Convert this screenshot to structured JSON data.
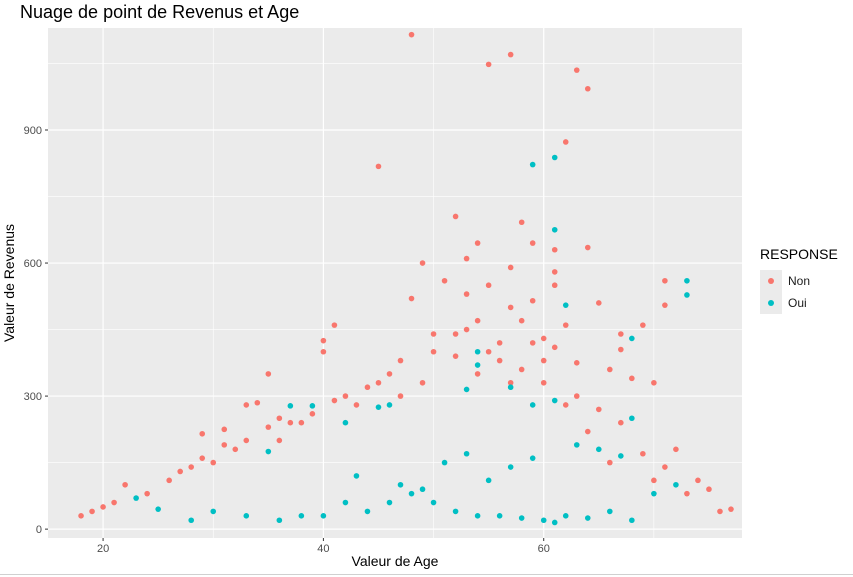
{
  "chart_data": {
    "type": "scatter",
    "title": "Nuage de point de Revenus et Age",
    "xlabel": "Valeur de Age",
    "ylabel": "Valeur de Revenus",
    "xlim": [
      15,
      78
    ],
    "ylim": [
      -20,
      1130
    ],
    "x_ticks": [
      20,
      40,
      60
    ],
    "y_ticks": [
      0,
      300,
      600,
      900
    ],
    "grid": true,
    "legend": {
      "title": "RESPONSE",
      "position": "right"
    },
    "series": [
      {
        "name": "Non",
        "color": "#F8766D",
        "points": [
          [
            48,
            1115
          ],
          [
            57,
            1070
          ],
          [
            55,
            1048
          ],
          [
            63,
            1035
          ],
          [
            64,
            993
          ],
          [
            45,
            818
          ],
          [
            62,
            873
          ],
          [
            52,
            705
          ],
          [
            58,
            692
          ],
          [
            54,
            645
          ],
          [
            59,
            645
          ],
          [
            64,
            635
          ],
          [
            61,
            630
          ],
          [
            49,
            600
          ],
          [
            53,
            610
          ],
          [
            57,
            590
          ],
          [
            61,
            580
          ],
          [
            51,
            560
          ],
          [
            55,
            550
          ],
          [
            61,
            550
          ],
          [
            53,
            530
          ],
          [
            57,
            500
          ],
          [
            59,
            515
          ],
          [
            71,
            560
          ],
          [
            71,
            505
          ],
          [
            65,
            510
          ],
          [
            48,
            520
          ],
          [
            41,
            460
          ],
          [
            40,
            425
          ],
          [
            67,
            440
          ],
          [
            40,
            400
          ],
          [
            67,
            405
          ],
          [
            69,
            460
          ],
          [
            70,
            330
          ],
          [
            35,
            350
          ],
          [
            49,
            330
          ],
          [
            34,
            285
          ],
          [
            33,
            280
          ],
          [
            29,
            215
          ],
          [
            31,
            225
          ],
          [
            36,
            250
          ],
          [
            47,
            300
          ],
          [
            58,
            470
          ],
          [
            60,
            430
          ],
          [
            62,
            460
          ],
          [
            52,
            440
          ],
          [
            54,
            470
          ],
          [
            47,
            380
          ],
          [
            55,
            400
          ],
          [
            60,
            380
          ],
          [
            63,
            375
          ],
          [
            66,
            360
          ],
          [
            68,
            340
          ],
          [
            56,
            420
          ],
          [
            50,
            440
          ],
          [
            53,
            450
          ],
          [
            69,
            170
          ],
          [
            72,
            180
          ],
          [
            71,
            140
          ],
          [
            74,
            110
          ],
          [
            75,
            90
          ],
          [
            76,
            40
          ],
          [
            77,
            45
          ],
          [
            73,
            80
          ],
          [
            70,
            110
          ],
          [
            66,
            150
          ],
          [
            64,
            220
          ],
          [
            62,
            280
          ],
          [
            60,
            330
          ],
          [
            58,
            360
          ],
          [
            56,
            380
          ],
          [
            54,
            350
          ],
          [
            52,
            390
          ],
          [
            50,
            400
          ],
          [
            46,
            350
          ],
          [
            44,
            320
          ],
          [
            42,
            300
          ],
          [
            38,
            240
          ],
          [
            36,
            200
          ],
          [
            32,
            180
          ],
          [
            30,
            150
          ],
          [
            28,
            140
          ],
          [
            26,
            110
          ],
          [
            24,
            80
          ],
          [
            22,
            100
          ],
          [
            21,
            60
          ],
          [
            20,
            50
          ],
          [
            19,
            40
          ],
          [
            18,
            30
          ],
          [
            43,
            280
          ],
          [
            45,
            330
          ],
          [
            65,
            270
          ],
          [
            67,
            240
          ],
          [
            59,
            420
          ],
          [
            57,
            330
          ],
          [
            61,
            410
          ],
          [
            63,
            300
          ],
          [
            39,
            260
          ],
          [
            41,
            290
          ],
          [
            37,
            240
          ],
          [
            35,
            230
          ],
          [
            33,
            200
          ],
          [
            31,
            190
          ],
          [
            29,
            160
          ],
          [
            27,
            130
          ]
        ]
      },
      {
        "name": "Oui",
        "color": "#00BFC4",
        "points": [
          [
            59,
            822
          ],
          [
            61,
            838
          ],
          [
            61,
            675
          ],
          [
            62,
            505
          ],
          [
            73,
            560
          ],
          [
            73,
            528
          ],
          [
            54,
            370
          ],
          [
            54,
            400
          ],
          [
            37,
            278
          ],
          [
            39,
            278
          ],
          [
            42,
            240
          ],
          [
            45,
            275
          ],
          [
            46,
            280
          ],
          [
            35,
            175
          ],
          [
            57,
            320
          ],
          [
            59,
            280
          ],
          [
            61,
            290
          ],
          [
            65,
            180
          ],
          [
            68,
            250
          ],
          [
            68,
            430
          ],
          [
            53,
            315
          ],
          [
            23,
            70
          ],
          [
            25,
            45
          ],
          [
            30,
            40
          ],
          [
            40,
            30
          ],
          [
            44,
            40
          ],
          [
            46,
            60
          ],
          [
            48,
            80
          ],
          [
            50,
            60
          ],
          [
            52,
            40
          ],
          [
            54,
            30
          ],
          [
            56,
            30
          ],
          [
            58,
            25
          ],
          [
            60,
            20
          ],
          [
            61,
            15
          ],
          [
            62,
            30
          ],
          [
            64,
            25
          ],
          [
            66,
            40
          ],
          [
            68,
            20
          ],
          [
            70,
            80
          ],
          [
            72,
            100
          ],
          [
            36,
            20
          ],
          [
            38,
            30
          ],
          [
            42,
            60
          ],
          [
            47,
            100
          ],
          [
            55,
            110
          ],
          [
            57,
            140
          ],
          [
            59,
            160
          ],
          [
            63,
            190
          ],
          [
            67,
            165
          ],
          [
            43,
            120
          ],
          [
            51,
            150
          ],
          [
            53,
            170
          ],
          [
            49,
            90
          ],
          [
            33,
            30
          ],
          [
            28,
            20
          ]
        ]
      }
    ]
  }
}
